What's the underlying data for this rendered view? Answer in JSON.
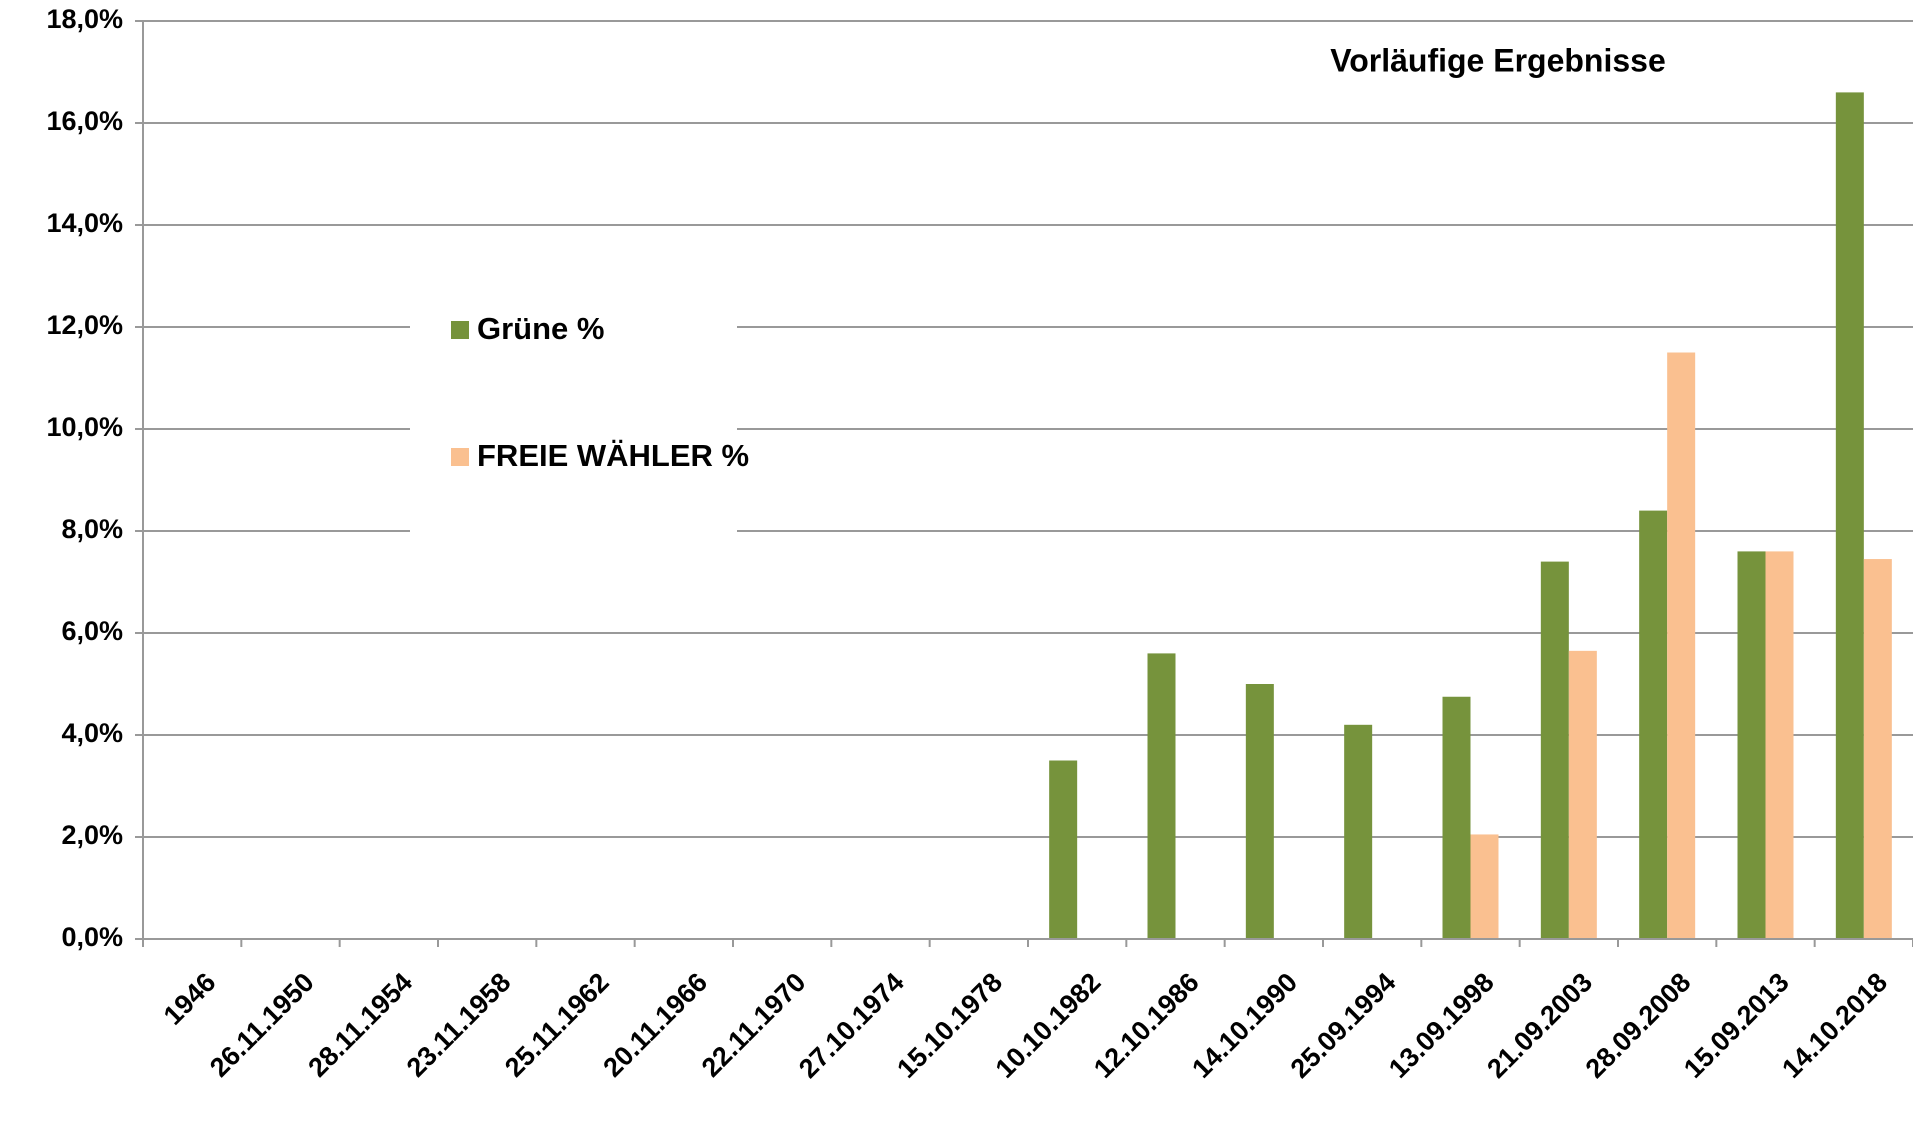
{
  "chart_data": {
    "type": "bar",
    "annotation": "Vorläufige Ergebnisse",
    "categories": [
      "1946",
      "26.11.1950",
      "28.11.1954",
      "23.11.1958",
      "25.11.1962",
      "20.11.1966",
      "22.11.1970",
      "27.10.1974",
      "15.10.1978",
      "10.10.1982",
      "12.10.1986",
      "14.10.1990",
      "25.09.1994",
      "13.09.1998",
      "21.09.2003",
      "28.09.2008",
      "15.09.2013",
      "14.10.2018"
    ],
    "series": [
      {
        "name": "Grüne %",
        "color": "#76933c",
        "values": [
          null,
          null,
          null,
          null,
          null,
          null,
          null,
          null,
          null,
          3.5,
          5.6,
          5.0,
          4.2,
          4.75,
          7.4,
          8.4,
          7.6,
          16.6
        ]
      },
      {
        "name": "FREIE WÄHLER %",
        "color": "#fac090",
        "values": [
          null,
          null,
          null,
          null,
          null,
          null,
          null,
          null,
          null,
          null,
          null,
          null,
          null,
          2.05,
          5.65,
          11.5,
          7.6,
          7.45
        ]
      }
    ],
    "ylim": [
      0,
      18
    ],
    "yticks": [
      {
        "value": 0,
        "label": "0,0%"
      },
      {
        "value": 2,
        "label": "2,0%"
      },
      {
        "value": 4,
        "label": "4,0%"
      },
      {
        "value": 6,
        "label": "6,0%"
      },
      {
        "value": 8,
        "label": "8,0%"
      },
      {
        "value": 10,
        "label": "10,0%"
      },
      {
        "value": 12,
        "label": "12,0%"
      },
      {
        "value": 14,
        "label": "14,0%"
      },
      {
        "value": 16,
        "label": "16,0%"
      },
      {
        "value": 18,
        "label": "18,0%"
      }
    ],
    "grid": true
  }
}
